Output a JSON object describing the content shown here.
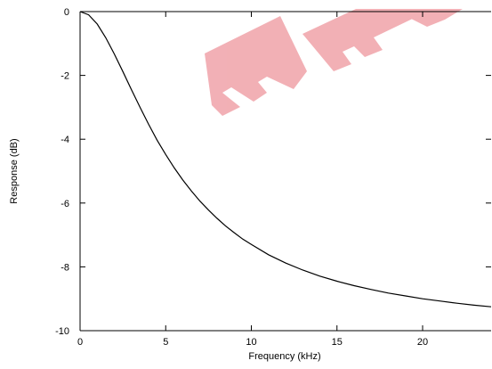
{
  "chart_data": {
    "type": "line",
    "title": "",
    "xlabel": "Frequency (kHz)",
    "ylabel": "Response (dB)",
    "xlim": [
      0,
      24
    ],
    "ylim": [
      -10,
      0
    ],
    "xticks": [
      0,
      5,
      10,
      15,
      20
    ],
    "yticks": [
      0,
      -2,
      -4,
      -6,
      -8,
      -10
    ],
    "grid": false,
    "legend": "none",
    "line_color": "#000000",
    "watermark_color": "#e8707a",
    "series": [
      {
        "x": [
          0,
          0.5,
          1,
          1.5,
          2,
          2.5,
          3,
          3.5,
          4,
          4.5,
          5,
          5.5,
          6,
          6.5,
          7,
          7.5,
          8,
          8.5,
          9,
          9.5,
          10,
          11,
          12,
          13,
          14,
          15,
          16,
          17,
          18,
          19,
          20,
          21,
          22,
          23,
          24
        ],
        "y": [
          0,
          -0.1,
          -0.39,
          -0.82,
          -1.33,
          -1.88,
          -2.45,
          -3.0,
          -3.53,
          -4.03,
          -4.48,
          -4.9,
          -5.28,
          -5.62,
          -5.94,
          -6.22,
          -6.48,
          -6.72,
          -6.93,
          -7.13,
          -7.3,
          -7.62,
          -7.88,
          -8.1,
          -8.29,
          -8.45,
          -8.59,
          -8.71,
          -8.82,
          -8.91,
          -9.0,
          -9.07,
          -9.14,
          -9.2,
          -9.25
        ]
      }
    ]
  }
}
